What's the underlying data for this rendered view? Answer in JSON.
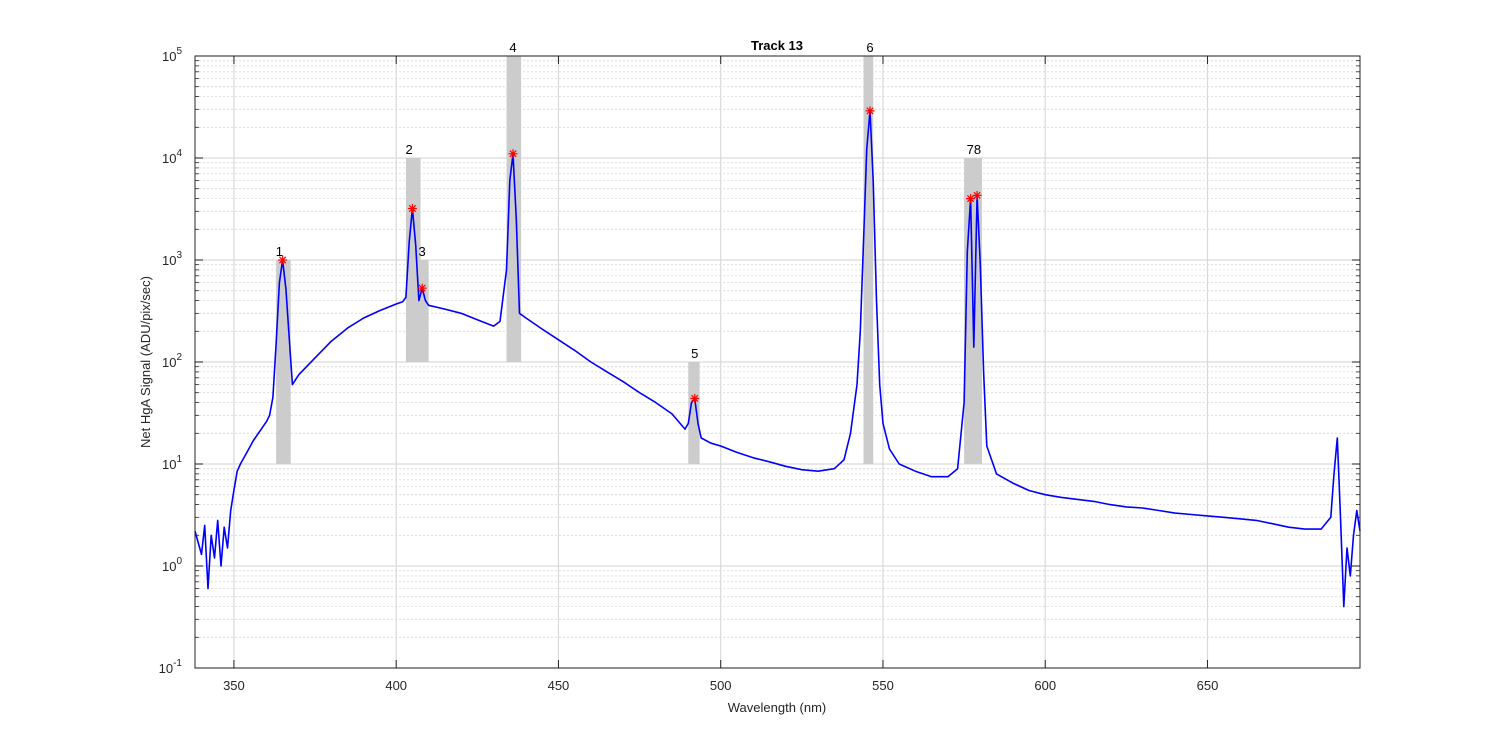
{
  "chart_data": {
    "type": "line",
    "title": "Track 13",
    "xlabel": "Wavelength (nm)",
    "ylabel": "Net HgA Signal (ADU/pix/sec)",
    "xlim": [
      338,
      697
    ],
    "ylim": [
      0.1,
      100000
    ],
    "yscale": "log",
    "grid": true,
    "x_ticks": [
      350,
      400,
      450,
      500,
      550,
      600,
      650
    ],
    "y_ticks": [
      {
        "value": 0.1,
        "base": "10",
        "exp": "-1"
      },
      {
        "value": 1,
        "base": "10",
        "exp": "0"
      },
      {
        "value": 10,
        "base": "10",
        "exp": "1"
      },
      {
        "value": 100,
        "base": "10",
        "exp": "2"
      },
      {
        "value": 1000,
        "base": "10",
        "exp": "3"
      },
      {
        "value": 10000,
        "base": "10",
        "exp": "4"
      },
      {
        "value": 100000,
        "base": "10",
        "exp": "5"
      }
    ],
    "series": [
      {
        "color": "#0000ff",
        "points": [
          [
            338,
            2.2
          ],
          [
            340,
            1.3
          ],
          [
            341,
            2.5
          ],
          [
            342,
            0.6
          ],
          [
            343,
            2.0
          ],
          [
            344,
            1.2
          ],
          [
            345,
            2.8
          ],
          [
            346,
            1.0
          ],
          [
            347,
            2.4
          ],
          [
            348,
            1.5
          ],
          [
            349,
            3.5
          ],
          [
            350,
            5.5
          ],
          [
            351,
            8.5
          ],
          [
            352,
            10
          ],
          [
            354,
            13
          ],
          [
            356,
            17
          ],
          [
            358,
            21
          ],
          [
            360,
            26
          ],
          [
            361,
            30
          ],
          [
            362,
            45
          ],
          [
            363,
            150
          ],
          [
            364,
            600
          ],
          [
            365,
            1000
          ],
          [
            366,
            520
          ],
          [
            367,
            180
          ],
          [
            368,
            60
          ],
          [
            370,
            75
          ],
          [
            375,
            110
          ],
          [
            380,
            160
          ],
          [
            385,
            215
          ],
          [
            390,
            270
          ],
          [
            395,
            320
          ],
          [
            400,
            370
          ],
          [
            402,
            390
          ],
          [
            403,
            430
          ],
          [
            404,
            1500
          ],
          [
            405,
            3200
          ],
          [
            406,
            1400
          ],
          [
            407,
            400
          ],
          [
            408,
            530
          ],
          [
            409,
            400
          ],
          [
            410,
            360
          ],
          [
            415,
            330
          ],
          [
            420,
            300
          ],
          [
            425,
            260
          ],
          [
            430,
            225
          ],
          [
            432,
            250
          ],
          [
            434,
            800
          ],
          [
            435,
            6000
          ],
          [
            436,
            11000
          ],
          [
            437,
            2500
          ],
          [
            438,
            300
          ],
          [
            440,
            270
          ],
          [
            445,
            210
          ],
          [
            450,
            165
          ],
          [
            455,
            130
          ],
          [
            460,
            100
          ],
          [
            465,
            80
          ],
          [
            470,
            64
          ],
          [
            475,
            50
          ],
          [
            480,
            40
          ],
          [
            485,
            31
          ],
          [
            489,
            22
          ],
          [
            490,
            25
          ],
          [
            491,
            40
          ],
          [
            492,
            44
          ],
          [
            493,
            25
          ],
          [
            494,
            18
          ],
          [
            497,
            16
          ],
          [
            500,
            15
          ],
          [
            505,
            13
          ],
          [
            510,
            11.5
          ],
          [
            515,
            10.5
          ],
          [
            520,
            9.5
          ],
          [
            525,
            8.8
          ],
          [
            530,
            8.5
          ],
          [
            535,
            9
          ],
          [
            538,
            11
          ],
          [
            540,
            20
          ],
          [
            542,
            60
          ],
          [
            543,
            200
          ],
          [
            544,
            1500
          ],
          [
            545,
            12000
          ],
          [
            546,
            29000
          ],
          [
            547,
            6000
          ],
          [
            548,
            400
          ],
          [
            549,
            60
          ],
          [
            550,
            25
          ],
          [
            552,
            14
          ],
          [
            555,
            10
          ],
          [
            560,
            8.5
          ],
          [
            565,
            7.5
          ],
          [
            570,
            7.5
          ],
          [
            573,
            9
          ],
          [
            575,
            40
          ],
          [
            576,
            1200
          ],
          [
            577,
            4000
          ],
          [
            578,
            140
          ],
          [
            579,
            4300
          ],
          [
            580,
            900
          ],
          [
            581,
            80
          ],
          [
            582,
            15
          ],
          [
            585,
            8
          ],
          [
            590,
            6.5
          ],
          [
            595,
            5.5
          ],
          [
            600,
            5
          ],
          [
            605,
            4.7
          ],
          [
            610,
            4.5
          ],
          [
            615,
            4.3
          ],
          [
            620,
            4.0
          ],
          [
            625,
            3.8
          ],
          [
            630,
            3.7
          ],
          [
            635,
            3.5
          ],
          [
            640,
            3.3
          ],
          [
            645,
            3.2
          ],
          [
            650,
            3.1
          ],
          [
            655,
            3.0
          ],
          [
            660,
            2.9
          ],
          [
            665,
            2.8
          ],
          [
            670,
            2.6
          ],
          [
            675,
            2.4
          ],
          [
            680,
            2.3
          ],
          [
            685,
            2.3
          ],
          [
            688,
            3
          ],
          [
            689,
            8
          ],
          [
            690,
            18
          ],
          [
            691,
            3
          ],
          [
            692,
            0.4
          ],
          [
            693,
            1.5
          ],
          [
            694,
            0.8
          ],
          [
            695,
            2
          ],
          [
            696,
            3.5
          ],
          [
            697,
            2.2
          ]
        ]
      }
    ],
    "peaks": [
      {
        "label": "1",
        "x": 365.0,
        "y": 1000
      },
      {
        "label": "2",
        "x": 405.0,
        "y": 3200
      },
      {
        "label": "3",
        "x": 408.0,
        "y": 530
      },
      {
        "label": "4",
        "x": 436.0,
        "y": 11000
      },
      {
        "label": "5",
        "x": 492.0,
        "y": 44
      },
      {
        "label": "6",
        "x": 546.0,
        "y": 29000
      },
      {
        "label": "7",
        "x": 577.0,
        "y": 4000
      },
      {
        "label": "8",
        "x": 579.0,
        "y": 4300
      }
    ],
    "highlight_bands": [
      {
        "x0": 363.0,
        "x1": 367.5,
        "y0": 10,
        "y1": 1000
      },
      {
        "x0": 403.0,
        "x1": 407.5,
        "y0": 100,
        "y1": 10000
      },
      {
        "x0": 406.5,
        "x1": 410.0,
        "y0": 100,
        "y1": 1000
      },
      {
        "x0": 434.0,
        "x1": 438.5,
        "y0": 100,
        "y1": 100000
      },
      {
        "x0": 490.0,
        "x1": 493.5,
        "y0": 10,
        "y1": 100
      },
      {
        "x0": 544.0,
        "x1": 547.0,
        "y0": 10,
        "y1": 100000
      },
      {
        "x0": 575.0,
        "x1": 580.5,
        "y0": 10,
        "y1": 10000
      }
    ],
    "peak_label_groups": [
      {
        "text": "1",
        "x": 364.0,
        "y": 1000
      },
      {
        "text": "2",
        "x": 404.0,
        "y": 10000
      },
      {
        "text": "3",
        "x": 408.0,
        "y": 1000
      },
      {
        "text": "4",
        "x": 436.0,
        "y": 100000
      },
      {
        "text": "5",
        "x": 492.0,
        "y": 100
      },
      {
        "text": "6",
        "x": 546.0,
        "y": 100000
      },
      {
        "text": "78",
        "x": 578.0,
        "y": 10000
      }
    ],
    "colors": {
      "line": "#0000ff",
      "marker": "#ff0000",
      "band": "#cccccc",
      "axis": "#262626"
    }
  }
}
